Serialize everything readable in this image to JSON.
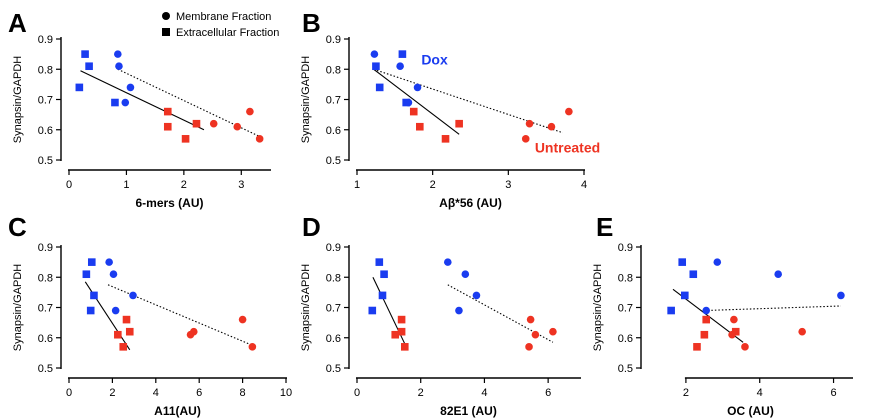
{
  "colors": {
    "blue": "#1a3cf0",
    "red": "#ee3322",
    "black": "#000000"
  },
  "legend": {
    "membrane": "Membrane Fraction",
    "extracellular": "Extracellular Fraction"
  },
  "chart_data": [
    {
      "type": "scatter",
      "panel": "A",
      "xlabel": "6-mers (AU)",
      "ylabel": "Synapsin/GAPDH",
      "xlim": [
        0,
        3.5
      ],
      "xticks": [
        0,
        1,
        2,
        3
      ],
      "ylim": [
        0.5,
        0.9
      ],
      "yticks": [
        0.5,
        0.6,
        0.7,
        0.8,
        0.9
      ],
      "points": [
        {
          "x": 0.28,
          "y": 0.85,
          "shape": "square",
          "color": "blue"
        },
        {
          "x": 0.35,
          "y": 0.81,
          "shape": "square",
          "color": "blue"
        },
        {
          "x": 0.18,
          "y": 0.74,
          "shape": "square",
          "color": "blue"
        },
        {
          "x": 0.8,
          "y": 0.69,
          "shape": "square",
          "color": "blue"
        },
        {
          "x": 0.85,
          "y": 0.85,
          "shape": "circle",
          "color": "blue"
        },
        {
          "x": 0.87,
          "y": 0.81,
          "shape": "circle",
          "color": "blue"
        },
        {
          "x": 1.07,
          "y": 0.74,
          "shape": "circle",
          "color": "blue"
        },
        {
          "x": 0.98,
          "y": 0.69,
          "shape": "circle",
          "color": "blue"
        },
        {
          "x": 1.72,
          "y": 0.66,
          "shape": "square",
          "color": "red"
        },
        {
          "x": 1.72,
          "y": 0.61,
          "shape": "square",
          "color": "red"
        },
        {
          "x": 2.03,
          "y": 0.57,
          "shape": "square",
          "color": "red"
        },
        {
          "x": 2.22,
          "y": 0.62,
          "shape": "square",
          "color": "red"
        },
        {
          "x": 2.52,
          "y": 0.62,
          "shape": "circle",
          "color": "red"
        },
        {
          "x": 2.93,
          "y": 0.61,
          "shape": "circle",
          "color": "red"
        },
        {
          "x": 3.15,
          "y": 0.66,
          "shape": "circle",
          "color": "red"
        },
        {
          "x": 3.32,
          "y": 0.57,
          "shape": "circle",
          "color": "red"
        }
      ],
      "fits": [
        {
          "style": "solid",
          "x1": 0.2,
          "y1": 0.795,
          "x2": 2.35,
          "y2": 0.6
        },
        {
          "style": "dotted",
          "x1": 0.85,
          "y1": 0.8,
          "x2": 3.35,
          "y2": 0.575
        }
      ]
    },
    {
      "type": "scatter",
      "panel": "B",
      "xlabel": "Aβ*56 (AU)",
      "ylabel": "Synapsin/GAPDH",
      "xlim": [
        1,
        4
      ],
      "xticks": [
        1,
        2,
        3,
        4
      ],
      "ylim": [
        0.5,
        0.9
      ],
      "yticks": [
        0.5,
        0.6,
        0.7,
        0.8,
        0.9
      ],
      "annotations": [
        {
          "text": "Dox",
          "color": "blue",
          "x": 1.85,
          "y": 0.815
        },
        {
          "text": "Untreated",
          "color": "red",
          "x": 3.35,
          "y": 0.525
        }
      ],
      "points": [
        {
          "x": 1.25,
          "y": 0.81,
          "shape": "square",
          "color": "blue"
        },
        {
          "x": 1.3,
          "y": 0.74,
          "shape": "square",
          "color": "blue"
        },
        {
          "x": 1.6,
          "y": 0.85,
          "shape": "square",
          "color": "blue"
        },
        {
          "x": 1.65,
          "y": 0.69,
          "shape": "square",
          "color": "blue"
        },
        {
          "x": 1.23,
          "y": 0.85,
          "shape": "circle",
          "color": "blue"
        },
        {
          "x": 1.57,
          "y": 0.81,
          "shape": "circle",
          "color": "blue"
        },
        {
          "x": 1.8,
          "y": 0.74,
          "shape": "circle",
          "color": "blue"
        },
        {
          "x": 1.68,
          "y": 0.69,
          "shape": "circle",
          "color": "blue"
        },
        {
          "x": 1.75,
          "y": 0.66,
          "shape": "square",
          "color": "red"
        },
        {
          "x": 1.83,
          "y": 0.61,
          "shape": "square",
          "color": "red"
        },
        {
          "x": 2.17,
          "y": 0.57,
          "shape": "square",
          "color": "red"
        },
        {
          "x": 2.35,
          "y": 0.62,
          "shape": "square",
          "color": "red"
        },
        {
          "x": 3.28,
          "y": 0.62,
          "shape": "circle",
          "color": "red"
        },
        {
          "x": 3.57,
          "y": 0.61,
          "shape": "circle",
          "color": "red"
        },
        {
          "x": 3.8,
          "y": 0.66,
          "shape": "circle",
          "color": "red"
        },
        {
          "x": 3.23,
          "y": 0.57,
          "shape": "circle",
          "color": "red"
        }
      ],
      "fits": [
        {
          "style": "solid",
          "x1": 1.22,
          "y1": 0.8,
          "x2": 2.35,
          "y2": 0.585
        },
        {
          "style": "dotted",
          "x1": 1.22,
          "y1": 0.8,
          "x2": 3.72,
          "y2": 0.59
        }
      ]
    },
    {
      "type": "scatter",
      "panel": "C",
      "xlabel": "A11(AU)",
      "ylabel": "Synapsin/GAPDH",
      "xlim": [
        0,
        10
      ],
      "xticks": [
        0,
        2,
        4,
        6,
        8,
        10
      ],
      "ylim": [
        0.5,
        0.9
      ],
      "yticks": [
        0.5,
        0.6,
        0.7,
        0.8,
        0.9
      ],
      "points": [
        {
          "x": 1.05,
          "y": 0.85,
          "shape": "square",
          "color": "blue"
        },
        {
          "x": 0.8,
          "y": 0.81,
          "shape": "square",
          "color": "blue"
        },
        {
          "x": 1.15,
          "y": 0.74,
          "shape": "square",
          "color": "blue"
        },
        {
          "x": 1.0,
          "y": 0.69,
          "shape": "square",
          "color": "blue"
        },
        {
          "x": 1.85,
          "y": 0.85,
          "shape": "circle",
          "color": "blue"
        },
        {
          "x": 2.05,
          "y": 0.81,
          "shape": "circle",
          "color": "blue"
        },
        {
          "x": 2.95,
          "y": 0.74,
          "shape": "circle",
          "color": "blue"
        },
        {
          "x": 2.15,
          "y": 0.69,
          "shape": "circle",
          "color": "blue"
        },
        {
          "x": 2.65,
          "y": 0.66,
          "shape": "square",
          "color": "red"
        },
        {
          "x": 2.8,
          "y": 0.62,
          "shape": "square",
          "color": "red"
        },
        {
          "x": 2.25,
          "y": 0.61,
          "shape": "square",
          "color": "red"
        },
        {
          "x": 2.5,
          "y": 0.57,
          "shape": "square",
          "color": "red"
        },
        {
          "x": 5.75,
          "y": 0.62,
          "shape": "circle",
          "color": "red"
        },
        {
          "x": 5.6,
          "y": 0.61,
          "shape": "circle",
          "color": "red"
        },
        {
          "x": 8.0,
          "y": 0.66,
          "shape": "circle",
          "color": "red"
        },
        {
          "x": 8.45,
          "y": 0.57,
          "shape": "circle",
          "color": "red"
        }
      ],
      "fits": [
        {
          "style": "solid",
          "x1": 0.75,
          "y1": 0.785,
          "x2": 2.8,
          "y2": 0.56
        },
        {
          "style": "dotted",
          "x1": 1.8,
          "y1": 0.775,
          "x2": 8.45,
          "y2": 0.575
        }
      ]
    },
    {
      "type": "scatter",
      "panel": "D",
      "xlabel": "82E1 (AU)",
      "ylabel": "Synapsin/GAPDH",
      "xlim": [
        0,
        7
      ],
      "xticks": [
        0,
        2,
        4,
        6
      ],
      "ylim": [
        0.5,
        0.9
      ],
      "yticks": [
        0.5,
        0.6,
        0.7,
        0.8,
        0.9
      ],
      "points": [
        {
          "x": 0.7,
          "y": 0.85,
          "shape": "square",
          "color": "blue"
        },
        {
          "x": 0.85,
          "y": 0.81,
          "shape": "square",
          "color": "blue"
        },
        {
          "x": 0.8,
          "y": 0.74,
          "shape": "square",
          "color": "blue"
        },
        {
          "x": 0.48,
          "y": 0.69,
          "shape": "square",
          "color": "blue"
        },
        {
          "x": 2.85,
          "y": 0.85,
          "shape": "circle",
          "color": "blue"
        },
        {
          "x": 3.4,
          "y": 0.81,
          "shape": "circle",
          "color": "blue"
        },
        {
          "x": 3.75,
          "y": 0.74,
          "shape": "circle",
          "color": "blue"
        },
        {
          "x": 3.2,
          "y": 0.69,
          "shape": "circle",
          "color": "blue"
        },
        {
          "x": 1.4,
          "y": 0.66,
          "shape": "square",
          "color": "red"
        },
        {
          "x": 1.4,
          "y": 0.62,
          "shape": "square",
          "color": "red"
        },
        {
          "x": 1.2,
          "y": 0.61,
          "shape": "square",
          "color": "red"
        },
        {
          "x": 1.5,
          "y": 0.57,
          "shape": "square",
          "color": "red"
        },
        {
          "x": 5.45,
          "y": 0.66,
          "shape": "circle",
          "color": "red"
        },
        {
          "x": 6.15,
          "y": 0.62,
          "shape": "circle",
          "color": "red"
        },
        {
          "x": 5.6,
          "y": 0.61,
          "shape": "circle",
          "color": "red"
        },
        {
          "x": 5.4,
          "y": 0.57,
          "shape": "circle",
          "color": "red"
        }
      ],
      "fits": [
        {
          "style": "solid",
          "x1": 0.5,
          "y1": 0.8,
          "x2": 1.5,
          "y2": 0.58
        },
        {
          "style": "dotted",
          "x1": 2.85,
          "y1": 0.775,
          "x2": 6.15,
          "y2": 0.585
        }
      ]
    },
    {
      "type": "scatter",
      "panel": "E",
      "xlabel": "OC (AU)",
      "ylabel": "Synapsin/GAPDH",
      "xlim": [
        1,
        6.5
      ],
      "xticks": [
        2,
        4,
        6
      ],
      "ylim": [
        0.5,
        0.9
      ],
      "yticks": [
        0.5,
        0.6,
        0.7,
        0.8,
        0.9
      ],
      "points": [
        {
          "x": 1.9,
          "y": 0.85,
          "shape": "square",
          "color": "blue"
        },
        {
          "x": 2.2,
          "y": 0.81,
          "shape": "square",
          "color": "blue"
        },
        {
          "x": 1.97,
          "y": 0.74,
          "shape": "square",
          "color": "blue"
        },
        {
          "x": 1.6,
          "y": 0.69,
          "shape": "square",
          "color": "blue"
        },
        {
          "x": 2.85,
          "y": 0.85,
          "shape": "circle",
          "color": "blue"
        },
        {
          "x": 4.5,
          "y": 0.81,
          "shape": "circle",
          "color": "blue"
        },
        {
          "x": 6.2,
          "y": 0.74,
          "shape": "circle",
          "color": "blue"
        },
        {
          "x": 2.55,
          "y": 0.69,
          "shape": "circle",
          "color": "blue"
        },
        {
          "x": 2.55,
          "y": 0.66,
          "shape": "square",
          "color": "red"
        },
        {
          "x": 3.35,
          "y": 0.62,
          "shape": "square",
          "color": "red"
        },
        {
          "x": 2.5,
          "y": 0.61,
          "shape": "square",
          "color": "red"
        },
        {
          "x": 2.3,
          "y": 0.57,
          "shape": "square",
          "color": "red"
        },
        {
          "x": 3.3,
          "y": 0.66,
          "shape": "circle",
          "color": "red"
        },
        {
          "x": 5.15,
          "y": 0.62,
          "shape": "circle",
          "color": "red"
        },
        {
          "x": 3.25,
          "y": 0.61,
          "shape": "circle",
          "color": "red"
        },
        {
          "x": 3.6,
          "y": 0.57,
          "shape": "circle",
          "color": "red"
        }
      ],
      "fits": [
        {
          "style": "solid",
          "x1": 1.65,
          "y1": 0.76,
          "x2": 3.55,
          "y2": 0.585
        },
        {
          "style": "dotted",
          "x1": 2.5,
          "y1": 0.69,
          "x2": 6.2,
          "y2": 0.705
        }
      ]
    }
  ]
}
